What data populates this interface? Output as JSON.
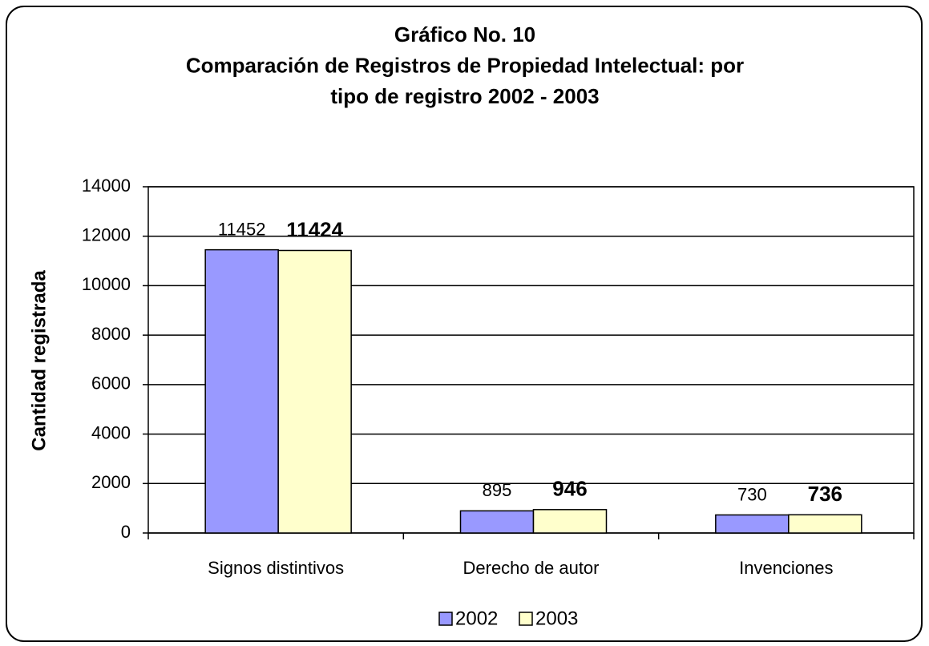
{
  "chart_data": {
    "type": "bar",
    "title": [
      "Gráfico No. 10",
      "Comparación de Registros de Propiedad Intelectual: por",
      "tipo de registro 2002 - 2003"
    ],
    "y_label": "Cantidad registrada",
    "categories": [
      "Signos distintivos",
      "Derecho de autor",
      "Invenciones"
    ],
    "series": [
      {
        "name": "2002",
        "color": "#9999ff",
        "values": [
          11452,
          895,
          730
        ]
      },
      {
        "name": "2003",
        "color": "#ffffcc",
        "values": [
          11424,
          946,
          736
        ]
      }
    ],
    "ylim": [
      0,
      14000
    ],
    "yticks": [
      0,
      2000,
      4000,
      6000,
      8000,
      10000,
      12000,
      14000
    ],
    "grid": true,
    "legend": "bottom"
  }
}
